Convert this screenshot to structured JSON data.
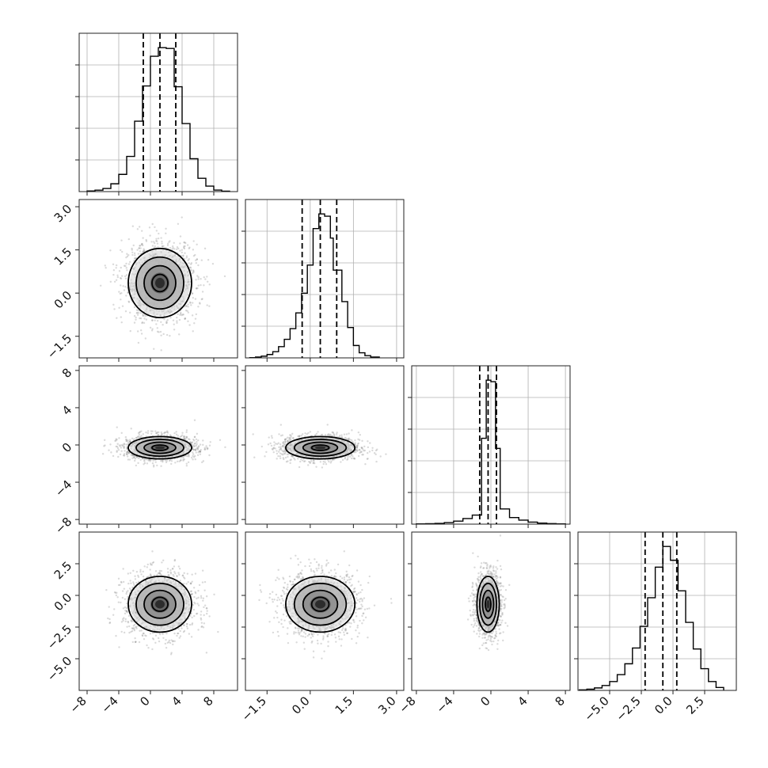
{
  "chart_data": {
    "type": "corner",
    "parameters": [
      {
        "range": [
          -9,
          11
        ],
        "ticks": [
          -8,
          -4,
          0,
          4,
          8
        ],
        "tick_labels": [
          "−8",
          "−4",
          "0",
          "4",
          "8"
        ],
        "mean": 1.2,
        "sd": 2.0,
        "quantiles": [
          -0.9,
          1.2,
          3.2
        ],
        "hist_bin_edges": [
          -8,
          -7,
          -6,
          -5,
          -4,
          -3,
          -2,
          -1,
          0,
          1,
          2,
          3,
          4,
          5,
          6,
          7,
          8,
          9,
          10
        ],
        "hist_counts": [
          0.8,
          1.8,
          4,
          10,
          22,
          45,
          90,
          135,
          173,
          184,
          183,
          134,
          87,
          42,
          17,
          7,
          2,
          0.6
        ]
      },
      {
        "range": [
          -2.25,
          3.25
        ],
        "ticks": [
          -1.5,
          0.0,
          1.5,
          3.0
        ],
        "tick_labels": [
          "−1.5",
          "0.0",
          "1.5",
          "3.0"
        ],
        "mean": 0.35,
        "sd": 0.6,
        "quantiles": [
          -0.28,
          0.35,
          0.92
        ],
        "hist_bin_edges": [
          -2.1,
          -1.9,
          -1.7,
          -1.5,
          -1.3,
          -1.1,
          -0.9,
          -0.7,
          -0.5,
          -0.3,
          -0.1,
          0.1,
          0.3,
          0.5,
          0.7,
          0.8,
          1.1,
          1.3,
          1.5,
          1.7,
          1.9,
          2.1,
          2.4
        ],
        "hist_counts": [
          0.5,
          1.5,
          3,
          6,
          11,
          20,
          33,
          52,
          80,
          115,
          165,
          230,
          256,
          252,
          213,
          156,
          100,
          54,
          22,
          9,
          4,
          1.5
        ]
      },
      {
        "range": [
          -8.5,
          8.5
        ],
        "ticks": [
          -8,
          -4,
          0,
          4,
          8
        ],
        "tick_labels": [
          "−8",
          "−4",
          "0",
          "4",
          "8"
        ],
        "mean": -0.3,
        "sd": 0.6,
        "quantiles": [
          -1.2,
          -0.3,
          0.6
        ],
        "hist_bin_edges": [
          -8,
          -7,
          -6,
          -5,
          -4,
          -3,
          -2,
          -1,
          -0.5,
          0,
          0.5,
          1,
          2,
          3,
          4,
          5,
          6,
          7,
          8
        ],
        "hist_counts": [
          0.4,
          0.8,
          1.5,
          3,
          6,
          11,
          18,
          170,
          285,
          282,
          150,
          30,
          13,
          8,
          4,
          2,
          1,
          0.4
        ]
      },
      {
        "range": [
          -7.5,
          5.0
        ],
        "ticks": [
          -5.0,
          -2.5,
          0.0,
          2.5
        ],
        "tick_labels": [
          "−5.0",
          "−2.5",
          "0.0",
          "2.5"
        ],
        "mean": -0.7,
        "sd": 1.1,
        "quantiles": [
          -2.2,
          -0.8,
          0.3
        ],
        "hist_bin_edges": [
          -7.4,
          -6.8,
          -6.2,
          -5.6,
          -5.0,
          -4.4,
          -3.8,
          -3.2,
          -2.6,
          -2.0,
          -1.4,
          -0.8,
          -0.2,
          0.4,
          1.0,
          1.6,
          2.2,
          2.8,
          3.4,
          4.0
        ],
        "hist_counts": [
          0.5,
          1.2,
          2.5,
          5,
          9,
          16,
          27,
          43,
          65,
          94,
          125,
          146,
          132,
          101,
          69,
          42,
          22,
          9,
          3
        ]
      }
    ],
    "pairs": [
      {
        "x": 0,
        "y": 1,
        "xsd": 2.0,
        "ysd": 0.6,
        "ellipses_sd": [
          0.5,
          1.0,
          1.5,
          2.0
        ]
      },
      {
        "x": 0,
        "y": 2,
        "xsd": 2.0,
        "ysd": 0.6,
        "ellipses_sd": [
          0.5,
          1.0,
          1.5,
          2.0
        ]
      },
      {
        "x": 1,
        "y": 2,
        "xsd": 0.6,
        "ysd": 0.6,
        "ellipses_sd": [
          0.5,
          1.0,
          1.5,
          2.0
        ]
      },
      {
        "x": 0,
        "y": 3,
        "xsd": 2.0,
        "ysd": 1.1,
        "ellipses_sd": [
          0.5,
          1.0,
          1.5,
          2.0
        ]
      },
      {
        "x": 1,
        "y": 3,
        "xsd": 0.6,
        "ysd": 1.1,
        "ellipses_sd": [
          0.5,
          1.0,
          1.5,
          2.0
        ]
      },
      {
        "x": 2,
        "y": 3,
        "xsd": 0.6,
        "ysd": 1.1,
        "ellipses_sd": [
          0.5,
          1.0,
          1.5,
          2.0
        ]
      }
    ],
    "grid": true,
    "scatter_points_per_panel": 1400,
    "colors": {
      "hist": "#000000",
      "scatter": "#7a7a7a",
      "density_dark": "#111111",
      "frame": "#222222",
      "grid": "#b0b0b0"
    }
  }
}
